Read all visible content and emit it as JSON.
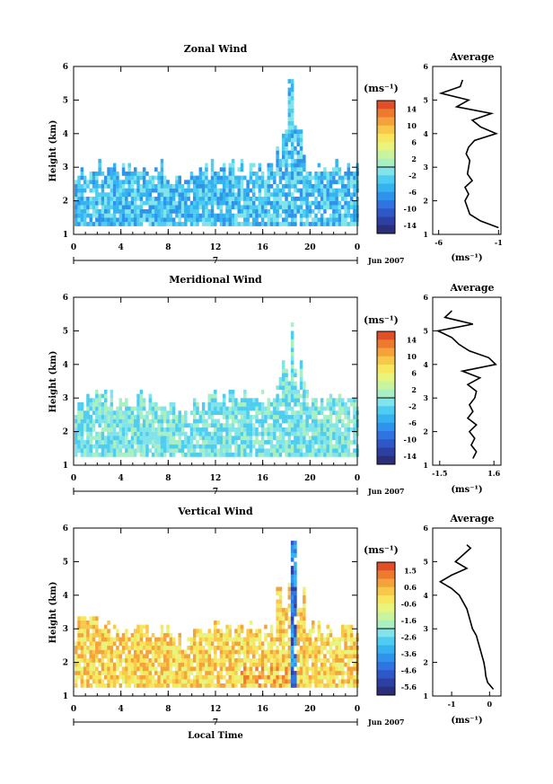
{
  "figure": {
    "date_label": "Jun 2007",
    "day_label": "7",
    "x_axis_label": "Local Time",
    "y_axis_label": "Height (km)",
    "unit_label": "(ms⁻¹)",
    "profile_title": "Average"
  },
  "chart_data": [
    {
      "id": "zonal",
      "type": "heatmap",
      "title": "Zonal Wind",
      "xlabel": "",
      "ylabel": "Height (km)",
      "xlim": [
        0,
        24
      ],
      "ylim": [
        1,
        6
      ],
      "xticks": [
        "0",
        "4",
        "8",
        "12",
        "16",
        "20",
        "0"
      ],
      "yticks": [
        "1",
        "2",
        "3",
        "4",
        "5",
        "6"
      ],
      "colorbar": {
        "ticks": [
          "14",
          "10",
          "6",
          "2",
          "-2",
          "-6",
          "-10",
          "-14"
        ],
        "min": -16,
        "max": 16,
        "colors": [
          "#2b2f7a",
          "#2d3fa3",
          "#2e57c8",
          "#2f74e0",
          "#2f93eb",
          "#35b2f0",
          "#4fcdf0",
          "#80e4ea",
          "#a8f0c2",
          "#c8f4a0",
          "#e8f47c",
          "#f8e65e",
          "#f8c84a",
          "#f4a23a",
          "#ee7a30",
          "#e04f28"
        ]
      },
      "profile": {
        "xticks": [
          "-6",
          "-1"
        ],
        "xlim": [
          -6.5,
          -0.8
        ],
        "xlabel": "(ms⁻¹)",
        "heights": [
          1.2,
          1.4,
          1.6,
          1.8,
          2.0,
          2.2,
          2.4,
          2.6,
          2.8,
          3.0,
          3.2,
          3.4,
          3.6,
          3.8,
          4.0,
          4.2,
          4.4,
          4.6,
          4.8,
          5.0,
          5.2,
          5.4,
          5.6
        ],
        "values": [
          -1.0,
          -2.5,
          -3.4,
          -3.6,
          -3.8,
          -3.5,
          -3.8,
          -3.2,
          -3.6,
          -3.5,
          -3.4,
          -3.7,
          -3.5,
          -3.0,
          -1.2,
          -2.5,
          -3.2,
          -1.6,
          -4.5,
          -3.5,
          -5.8,
          -4.2,
          -4.0
        ]
      }
    },
    {
      "id": "meridional",
      "type": "heatmap",
      "title": "Meridional Wind",
      "xlabel": "",
      "ylabel": "Height (km)",
      "xlim": [
        0,
        24
      ],
      "ylim": [
        1,
        6
      ],
      "xticks": [
        "0",
        "4",
        "8",
        "12",
        "16",
        "20",
        "0"
      ],
      "yticks": [
        "1",
        "2",
        "3",
        "4",
        "5",
        "6"
      ],
      "colorbar": {
        "ticks": [
          "14",
          "10",
          "6",
          "2",
          "-2",
          "-6",
          "-10",
          "-14"
        ],
        "min": -16,
        "max": 16,
        "colors": [
          "#2b2f7a",
          "#2d3fa3",
          "#2e57c8",
          "#2f74e0",
          "#2f93eb",
          "#35b2f0",
          "#4fcdf0",
          "#80e4ea",
          "#a8f0c2",
          "#c8f4a0",
          "#e8f47c",
          "#f8e65e",
          "#f8c84a",
          "#f4a23a",
          "#ee7a30",
          "#e04f28"
        ]
      },
      "profile": {
        "xticks": [
          "-1.5",
          "1.6"
        ],
        "xlim": [
          -1.9,
          2.0
        ],
        "xlabel": "(ms⁻¹)",
        "heights": [
          1.2,
          1.4,
          1.6,
          1.8,
          2.0,
          2.2,
          2.4,
          2.6,
          2.8,
          3.0,
          3.2,
          3.4,
          3.6,
          3.8,
          4.0,
          4.2,
          4.4,
          4.6,
          4.8,
          5.0,
          5.2,
          5.4,
          5.6
        ],
        "values": [
          0.4,
          0.6,
          0.3,
          0.5,
          0.2,
          0.6,
          0.1,
          0.4,
          0.2,
          0.5,
          0.6,
          0.1,
          0.8,
          -0.2,
          1.7,
          1.3,
          0.2,
          -0.4,
          -0.8,
          -1.6,
          0.4,
          -1.2,
          -0.8
        ]
      }
    },
    {
      "id": "vertical",
      "type": "heatmap",
      "title": "Vertical Wind",
      "xlabel": "Local Time",
      "ylabel": "Height (km)",
      "xlim": [
        0,
        24
      ],
      "ylim": [
        1,
        6
      ],
      "xticks": [
        "0",
        "4",
        "8",
        "12",
        "16",
        "20",
        "0"
      ],
      "yticks": [
        "1",
        "2",
        "3",
        "4",
        "5",
        "6"
      ],
      "colorbar": {
        "ticks": [
          "1.5",
          "0.6",
          "-0.6",
          "-1.6",
          "-2.6",
          "-3.6",
          "-4.6",
          "-5.6"
        ],
        "min": -6.1,
        "max": 2.0,
        "colors": [
          "#2b2f7a",
          "#2d3fa3",
          "#2e57c8",
          "#2f74e0",
          "#2f93eb",
          "#35b2f0",
          "#4fcdf0",
          "#80e4ea",
          "#a8f0c2",
          "#c8f4a0",
          "#e8f47c",
          "#f8e65e",
          "#f8c84a",
          "#f4a23a",
          "#ee7a30",
          "#e04f28"
        ]
      },
      "profile": {
        "xticks": [
          "-1",
          "0"
        ],
        "xlim": [
          -1.5,
          0.3
        ],
        "xlabel": "(ms⁻¹)",
        "heights": [
          1.2,
          1.4,
          1.6,
          1.8,
          2.0,
          2.2,
          2.4,
          2.6,
          2.8,
          3.0,
          3.2,
          3.4,
          3.6,
          3.8,
          4.0,
          4.2,
          4.4,
          4.6,
          4.8,
          5.0,
          5.2,
          5.4,
          5.5
        ],
        "values": [
          0.1,
          -0.05,
          -0.1,
          -0.12,
          -0.15,
          -0.2,
          -0.25,
          -0.3,
          -0.35,
          -0.45,
          -0.5,
          -0.55,
          -0.6,
          -0.7,
          -0.8,
          -1.0,
          -1.3,
          -1.0,
          -0.6,
          -0.9,
          -0.7,
          -0.5,
          -0.6
        ]
      }
    }
  ]
}
